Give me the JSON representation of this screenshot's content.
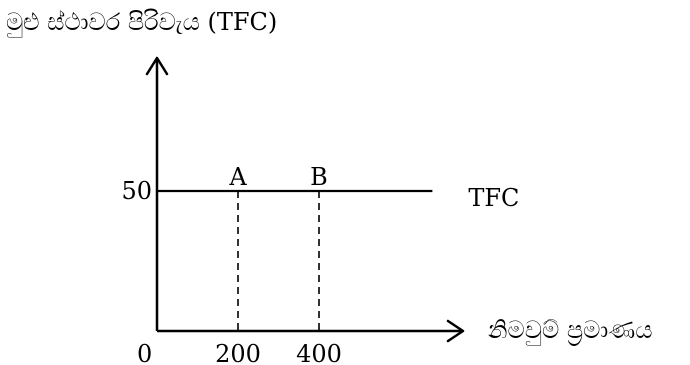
{
  "chart_data": {
    "type": "line",
    "title": "",
    "ylabel": "මුළු ස්ථාවර පිරිවැය (TFC)",
    "xlabel": "නිමවුම් ප්‍රමාණය",
    "origin_label": "0",
    "x_ticks": [
      200,
      400
    ],
    "y_ticks": [
      50
    ],
    "xlim": [
      0,
      730
    ],
    "ylim": [
      0,
      85
    ],
    "series": [
      {
        "name": "TFC",
        "x": [
          0,
          680
        ],
        "y": [
          50,
          50
        ]
      }
    ],
    "points": [
      {
        "label": "A",
        "x": 200,
        "y": 50
      },
      {
        "label": "B",
        "x": 400,
        "y": 50
      }
    ],
    "grid": false,
    "legend": "none"
  }
}
